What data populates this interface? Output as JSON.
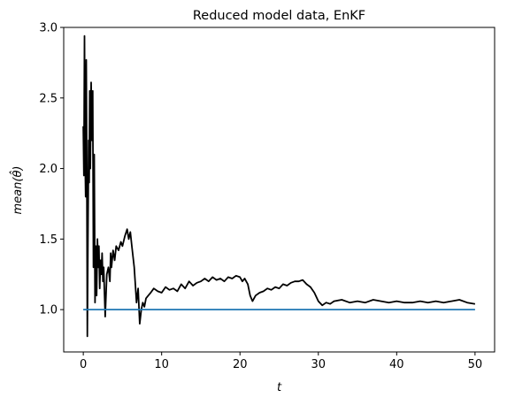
{
  "chart_data": {
    "type": "line",
    "title": "Reduced model data, EnKF",
    "xlabel": "t",
    "ylabel": "mean(θ̂)",
    "xlim": [
      -2.5,
      52.5
    ],
    "ylim": [
      0.7,
      3.0
    ],
    "xticks": [
      0,
      10,
      20,
      30,
      40,
      50
    ],
    "xtick_labels": [
      "0",
      "10",
      "20",
      "30",
      "40",
      "50"
    ],
    "yticks": [
      1.0,
      1.5,
      2.0,
      2.5,
      3.0
    ],
    "ytick_labels": [
      "1.0",
      "1.5",
      "2.0",
      "2.5",
      "3.0"
    ],
    "grid": false,
    "series": [
      {
        "color": "#000000",
        "x": [
          0,
          0.08,
          0.15,
          0.22,
          0.3,
          0.38,
          0.45,
          0.52,
          0.6,
          0.68,
          0.75,
          0.82,
          0.9,
          1.0,
          1.1,
          1.2,
          1.3,
          1.4,
          1.5,
          1.6,
          1.7,
          1.8,
          1.9,
          2.0,
          2.1,
          2.2,
          2.3,
          2.4,
          2.5,
          2.6,
          2.8,
          3.0,
          3.2,
          3.4,
          3.5,
          3.6,
          3.8,
          4.0,
          4.2,
          4.5,
          4.8,
          5.0,
          5.3,
          5.6,
          5.8,
          6.0,
          6.2,
          6.5,
          6.8,
          7.0,
          7.2,
          7.4,
          7.6,
          7.8,
          8.0,
          8.3,
          8.6,
          9.0,
          9.5,
          10.0,
          10.5,
          11.0,
          11.5,
          12.0,
          12.5,
          13.0,
          13.5,
          14.0,
          14.5,
          15.0,
          15.5,
          16.0,
          16.5,
          17.0,
          17.5,
          18.0,
          18.5,
          19.0,
          19.5,
          20.0,
          20.3,
          20.6,
          21.0,
          21.3,
          21.6,
          22.0,
          22.5,
          23.0,
          23.5,
          24.0,
          24.5,
          25.0,
          25.5,
          26.0,
          26.5,
          27.0,
          27.5,
          28.0,
          28.5,
          29.0,
          29.5,
          30.0,
          30.5,
          31.0,
          31.5,
          32.0,
          33.0,
          34.0,
          35.0,
          36.0,
          37.0,
          38.0,
          39.0,
          40.0,
          41.0,
          42.0,
          43.0,
          44.0,
          45.0,
          46.0,
          47.0,
          48.0,
          49.0,
          50.0
        ],
        "y": [
          2.3,
          1.95,
          2.94,
          2.1,
          1.8,
          2.77,
          2.0,
          0.81,
          1.5,
          2.2,
          1.9,
          2.55,
          2.0,
          2.61,
          2.2,
          2.55,
          1.3,
          2.1,
          1.05,
          1.45,
          1.1,
          1.5,
          1.3,
          1.45,
          1.15,
          1.35,
          1.25,
          1.4,
          1.2,
          1.3,
          0.95,
          1.25,
          1.3,
          1.2,
          1.4,
          1.3,
          1.42,
          1.35,
          1.45,
          1.42,
          1.48,
          1.45,
          1.52,
          1.57,
          1.5,
          1.55,
          1.45,
          1.3,
          1.05,
          1.15,
          0.9,
          1.0,
          1.05,
          1.02,
          1.08,
          1.1,
          1.12,
          1.15,
          1.13,
          1.12,
          1.16,
          1.14,
          1.15,
          1.13,
          1.18,
          1.15,
          1.2,
          1.17,
          1.19,
          1.2,
          1.22,
          1.2,
          1.23,
          1.21,
          1.22,
          1.2,
          1.23,
          1.22,
          1.24,
          1.23,
          1.2,
          1.22,
          1.18,
          1.1,
          1.06,
          1.1,
          1.12,
          1.13,
          1.15,
          1.14,
          1.16,
          1.15,
          1.18,
          1.17,
          1.19,
          1.2,
          1.2,
          1.21,
          1.18,
          1.16,
          1.12,
          1.06,
          1.03,
          1.05,
          1.04,
          1.06,
          1.07,
          1.05,
          1.06,
          1.05,
          1.07,
          1.06,
          1.05,
          1.06,
          1.05,
          1.05,
          1.06,
          1.05,
          1.06,
          1.05,
          1.06,
          1.07,
          1.05,
          1.04
        ]
      },
      {
        "color": "#1f77b4",
        "x": [
          0,
          50
        ],
        "y": [
          1.0,
          1.0
        ]
      }
    ]
  }
}
